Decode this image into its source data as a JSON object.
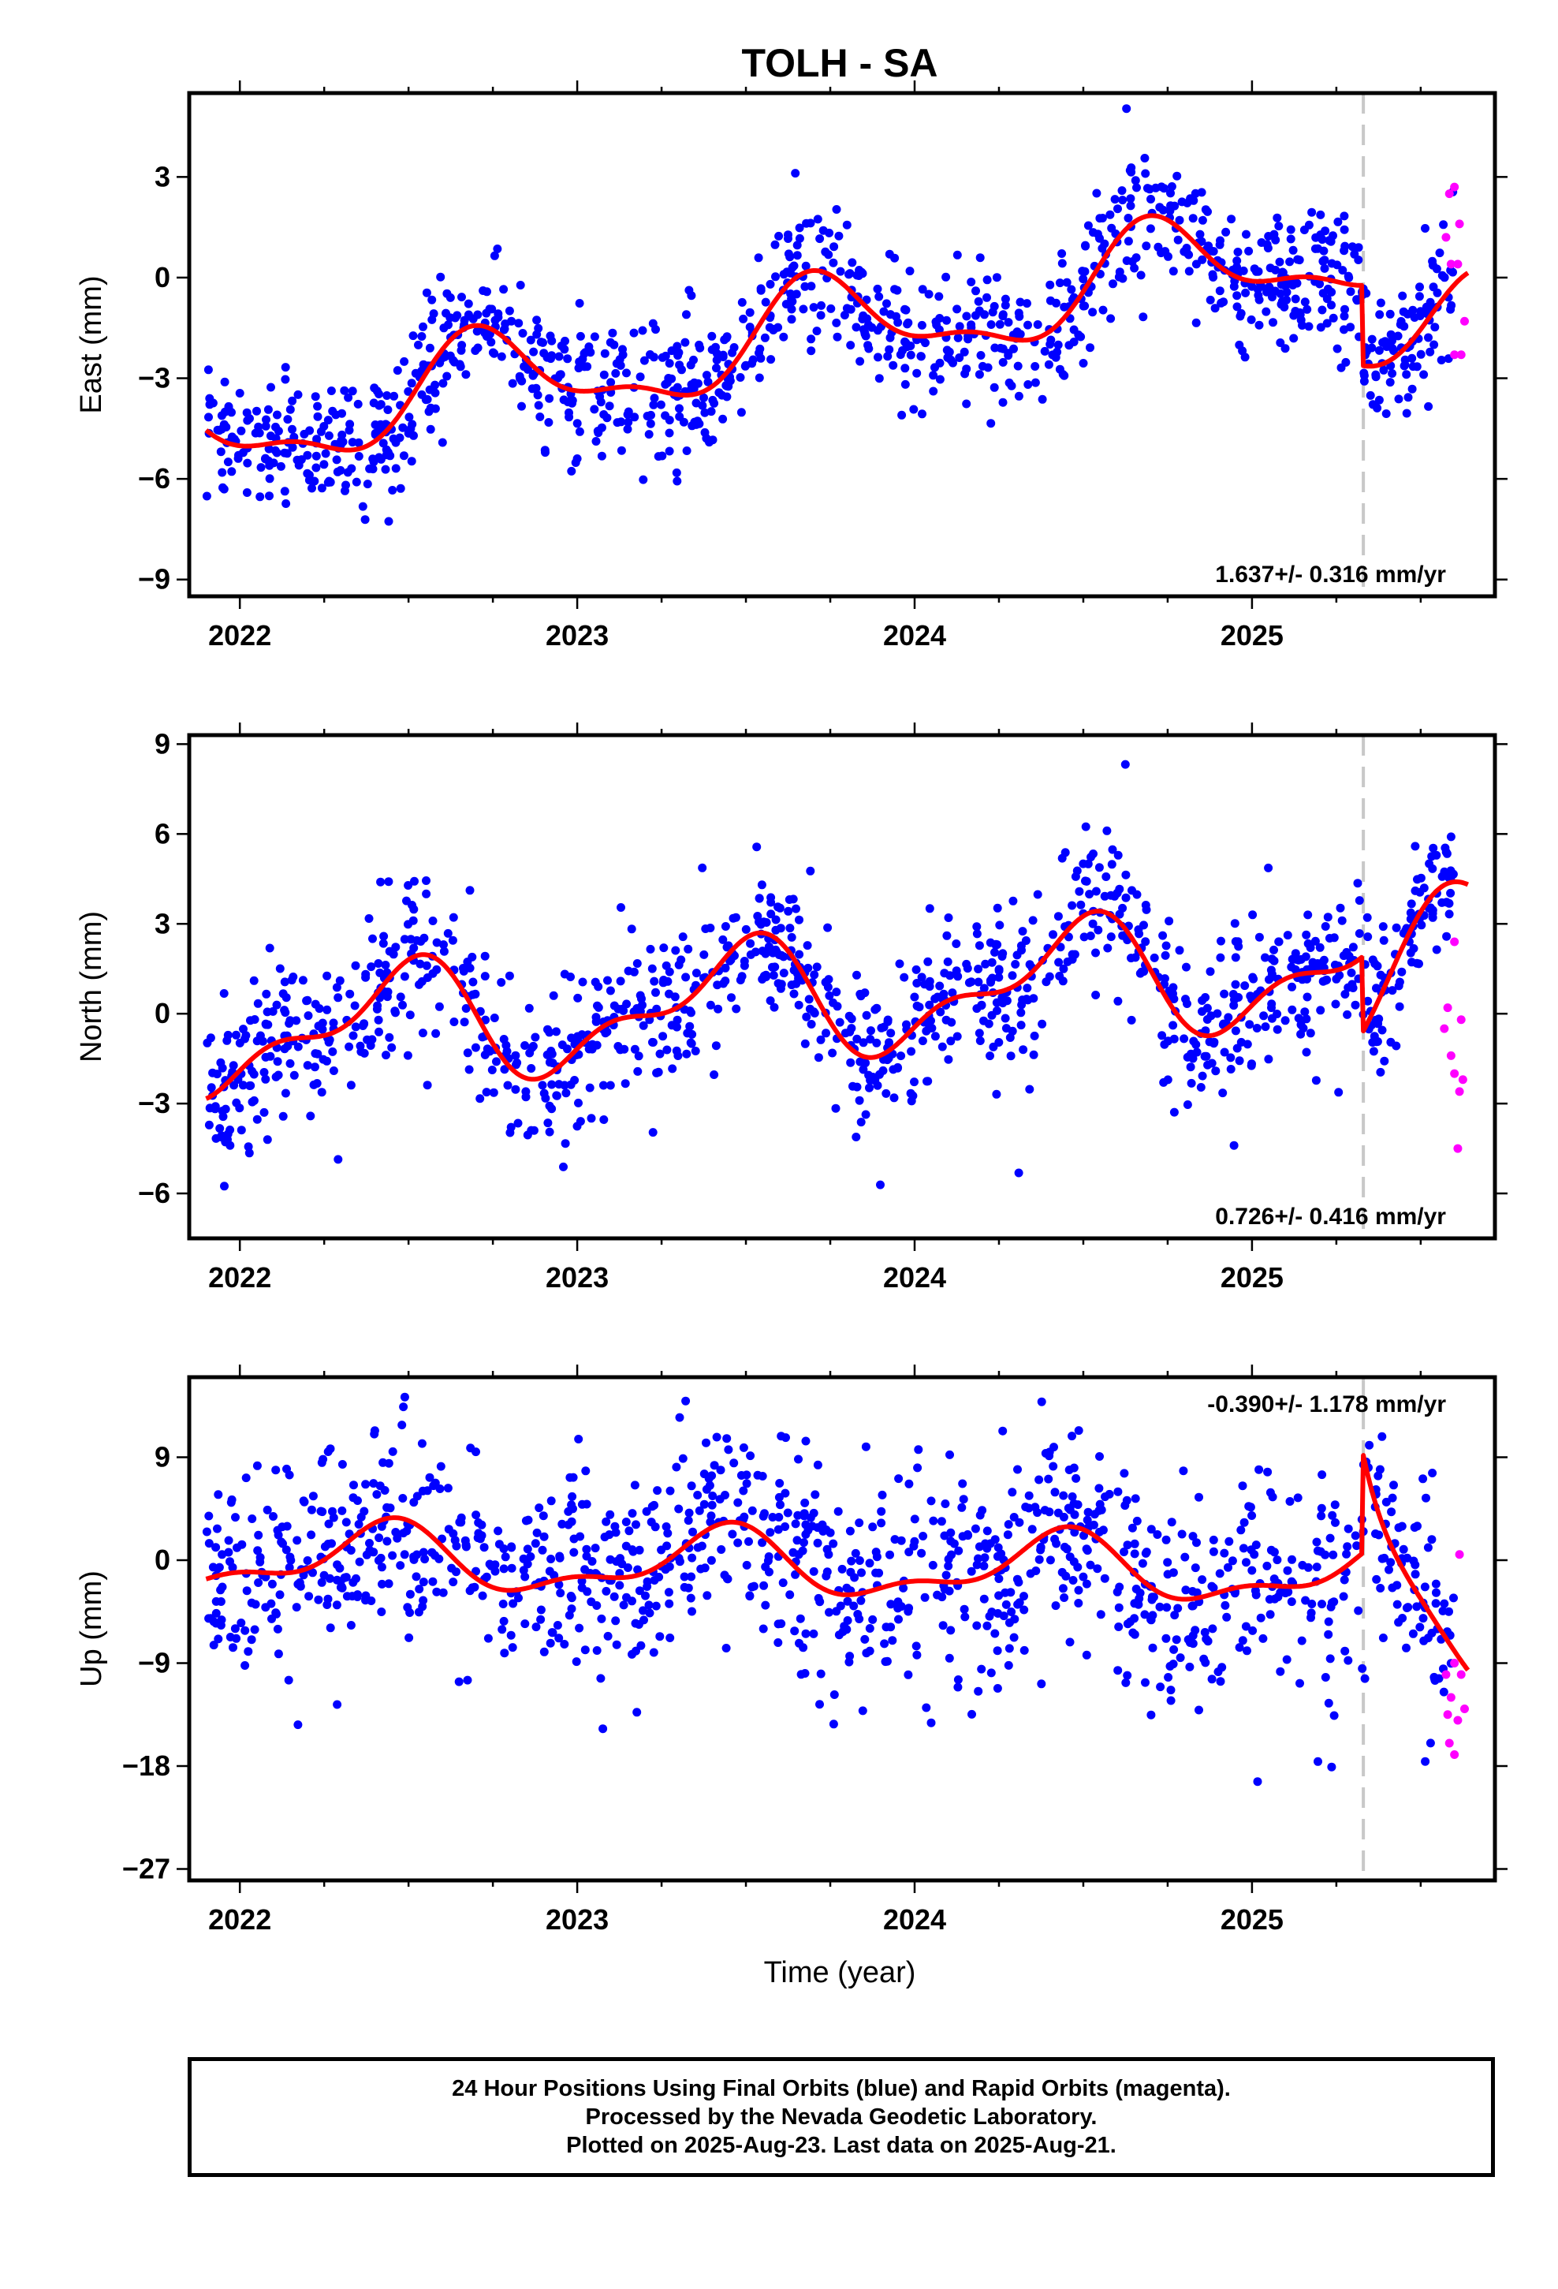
{
  "title": "TOLH - SA",
  "xlabel": "Time (year)",
  "footer": {
    "line1": "24 Hour Positions Using Final Orbits (blue) and Rapid Orbits (magenta).",
    "line2": "Processed by the Nevada Geodetic Laboratory.",
    "line3": "Plotted on 2025-Aug-23. Last data on 2025-Aug-21."
  },
  "colors": {
    "final_orbits": "#0000ff",
    "rapid_orbits": "#ff00ff",
    "model_fit": "#ff0000",
    "break_line": "#c8c8c8",
    "frame": "#000000"
  },
  "chart_data": [
    {
      "type": "scatter",
      "ylabel": "East (mm)",
      "xlim": [
        2021.85,
        2025.72
      ],
      "ylim": [
        -9.5,
        5.5
      ],
      "yticks": [
        "3",
        "0",
        "-3",
        "-6",
        "-9"
      ],
      "ytick_values": [
        3,
        0,
        -3,
        -6,
        -9
      ],
      "xticks": [
        "2022",
        "2023",
        "2024",
        "2025"
      ],
      "xtick_values": [
        2022,
        2023,
        2024,
        2025
      ],
      "rate_label": "1.637+/- 0.316 mm/yr",
      "rate_position": "bottom-right",
      "break_epoch": 2025.33,
      "model": {
        "rate": 1.637,
        "anchor": [
          2021.9,
          -4.6
        ],
        "terms": [
          {
            "amp": 1.35,
            "phase": 0.47,
            "period": 1
          },
          {
            "amp": 0.55,
            "phase": 0.55,
            "period": 0.5
          }
        ],
        "break": {
          "x": 2025.33,
          "offset": -2.4,
          "rate_after": -0.5
        }
      },
      "scatter_final": {
        "sigma": 1.0,
        "seed": 11,
        "start": 2021.9,
        "end": 2025.6,
        "count": 1150
      },
      "rapid_points": [
        [
          2025.575,
          1.2
        ],
        [
          2025.585,
          2.5
        ],
        [
          2025.59,
          0.4
        ],
        [
          2025.6,
          2.7
        ],
        [
          2025.6,
          -2.3
        ],
        [
          2025.61,
          0.4
        ],
        [
          2025.615,
          1.6
        ],
        [
          2025.62,
          -2.3
        ],
        [
          2025.63,
          -1.3
        ]
      ]
    },
    {
      "type": "scatter",
      "ylabel": "North (mm)",
      "xlim": [
        2021.85,
        2025.72
      ],
      "ylim": [
        -7.5,
        9.3
      ],
      "yticks": [
        "9",
        "6",
        "3",
        "0",
        "-3",
        "-6"
      ],
      "ytick_values": [
        9,
        6,
        3,
        0,
        -3,
        -6
      ],
      "xticks": [
        "2022",
        "2023",
        "2024",
        "2025"
      ],
      "xtick_values": [
        2022,
        2023,
        2024,
        2025
      ],
      "rate_label": "0.726+/- 0.416 mm/yr",
      "rate_position": "bottom-right",
      "break_epoch": 2025.33,
      "model": {
        "rate": 0.726,
        "anchor": [
          2021.9,
          -0.8
        ],
        "terms": [
          {
            "amp": 1.7,
            "phase": 0.22,
            "period": 1
          },
          {
            "amp": 0.85,
            "phase": 0.45,
            "period": 0.5
          }
        ],
        "break": {
          "x": 2025.33,
          "offset": -2.5,
          "rate_after": 12.0
        }
      },
      "scatter_final": {
        "sigma": 1.2,
        "seed": 23,
        "start": 2021.9,
        "end": 2025.6,
        "count": 1150
      },
      "rapid_points": [
        [
          2025.57,
          -0.5
        ],
        [
          2025.58,
          0.2
        ],
        [
          2025.59,
          -1.4
        ],
        [
          2025.6,
          2.4
        ],
        [
          2025.6,
          -2.0
        ],
        [
          2025.61,
          -4.5
        ],
        [
          2025.615,
          -2.6
        ],
        [
          2025.62,
          -0.2
        ],
        [
          2025.625,
          -2.2
        ]
      ]
    },
    {
      "type": "scatter",
      "ylabel": "Up (mm)",
      "xlim": [
        2021.85,
        2025.72
      ],
      "ylim": [
        -28,
        16
      ],
      "yticks": [
        "9",
        "0",
        "-9",
        "-18",
        "-27"
      ],
      "ytick_values": [
        9,
        0,
        -9,
        -18,
        -27
      ],
      "xticks": [
        "2022",
        "2023",
        "2024",
        "2025"
      ],
      "xtick_values": [
        2022,
        2023,
        2024,
        2025
      ],
      "rate_label": "-0.390+/- 1.178 mm/yr",
      "rate_position": "top-right",
      "break_epoch": 2025.33,
      "model": {
        "rate": -0.39,
        "anchor": [
          2021.9,
          0.2
        ],
        "terms": [
          {
            "amp": 2.6,
            "phase": 0.18,
            "period": 1
          },
          {
            "amp": 1.2,
            "phase": 0.35,
            "period": 0.5
          }
        ],
        "break": {
          "x": 2025.33,
          "offset": 8.5,
          "decay": 0.11,
          "decay_to": -9.5
        }
      },
      "scatter_final": {
        "sigma": 4.6,
        "seed": 37,
        "start": 2021.9,
        "end": 2025.6,
        "count": 1150
      },
      "rapid_points": [
        [
          2025.575,
          -10.0
        ],
        [
          2025.58,
          -13.5
        ],
        [
          2025.585,
          -16.0
        ],
        [
          2025.59,
          -12.0
        ],
        [
          2025.6,
          -17.0
        ],
        [
          2025.6,
          -9.0
        ],
        [
          2025.61,
          -14.0
        ],
        [
          2025.615,
          0.5
        ],
        [
          2025.62,
          -10.0
        ],
        [
          2025.63,
          -13.0
        ]
      ]
    }
  ]
}
